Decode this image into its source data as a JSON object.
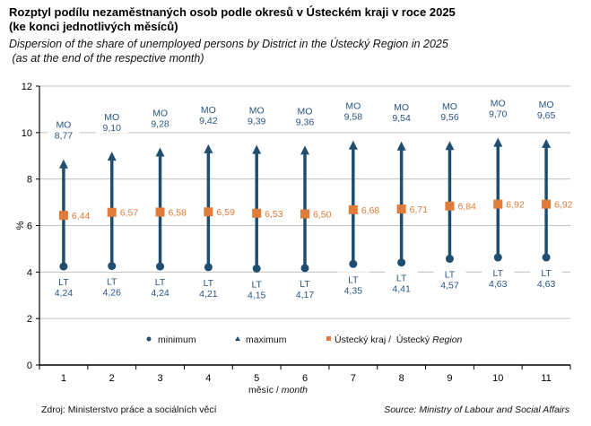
{
  "title": {
    "line1": "Rozptyl podílu nezaměstnaných osob podle okresů v Ústeckém kraji v roce 2025",
    "line2": "(ke konci jednotlivých měsíců)",
    "en_line1": "Dispersion of the share of unemployed persons by District in the Ústecký Region in 2025",
    "en_line2": " (as at the end of the respective month)"
  },
  "chart_data": {
    "type": "scatter",
    "title": "Rozptyl podílu nezaměstnaných osob podle okresů v Ústeckém kraji v roce 2025",
    "xlabel_cz": "měsíc",
    "xlabel_en": "month",
    "xlabel_sep": " / ",
    "ylabel": "%",
    "ylim": [
      0,
      12
    ],
    "yticks": [
      0,
      2,
      4,
      6,
      8,
      10,
      12
    ],
    "grid": true,
    "categories": [
      "1",
      "2",
      "3",
      "4",
      "5",
      "6",
      "7",
      "8",
      "9",
      "10",
      "11"
    ],
    "series": [
      {
        "name": "minimum",
        "district": "LT",
        "marker": "circle",
        "values": [
          4.24,
          4.26,
          4.24,
          4.21,
          4.15,
          4.17,
          4.35,
          4.41,
          4.57,
          4.63,
          4.63
        ],
        "labels": [
          "4,24",
          "4,26",
          "4,24",
          "4,21",
          "4,15",
          "4,17",
          "4,35",
          "4,41",
          "4,57",
          "4,63",
          "4,63"
        ]
      },
      {
        "name": "maximum",
        "district": "MO",
        "marker": "triangle",
        "values": [
          8.77,
          9.1,
          9.28,
          9.42,
          9.39,
          9.36,
          9.58,
          9.54,
          9.56,
          9.7,
          9.65
        ],
        "labels": [
          "8,77",
          "9,10",
          "9,28",
          "9,42",
          "9,39",
          "9,36",
          "9,58",
          "9,54",
          "9,56",
          "9,70",
          "9,65"
        ]
      },
      {
        "name": "Ústecký kraj / Ústecký Region",
        "marker": "square",
        "values": [
          6.44,
          6.57,
          6.58,
          6.59,
          6.53,
          6.5,
          6.68,
          6.71,
          6.84,
          6.92,
          6.92
        ],
        "labels": [
          "6,44",
          "6,57",
          "6,58",
          "6,59",
          "6,53",
          "6,50",
          "6,68",
          "6,71",
          "6,84",
          "6,92",
          "6,92"
        ]
      }
    ],
    "legend": {
      "position": "bottom-inside",
      "min_label": "minimum",
      "max_label": "maximum",
      "region_label_cz": "Ústecký kraj /  Ústecký ",
      "region_label_en": "Region"
    },
    "colors": {
      "line": "#1f4e70",
      "region": "#e07b39",
      "label": "#2a5580",
      "grid": "#c0c0c0"
    }
  },
  "footer": {
    "source_cz": "Zdroj: Ministerstvo práce a sociálních věcí",
    "source_en": "Source: Ministry of Labour and Social Affairs"
  }
}
